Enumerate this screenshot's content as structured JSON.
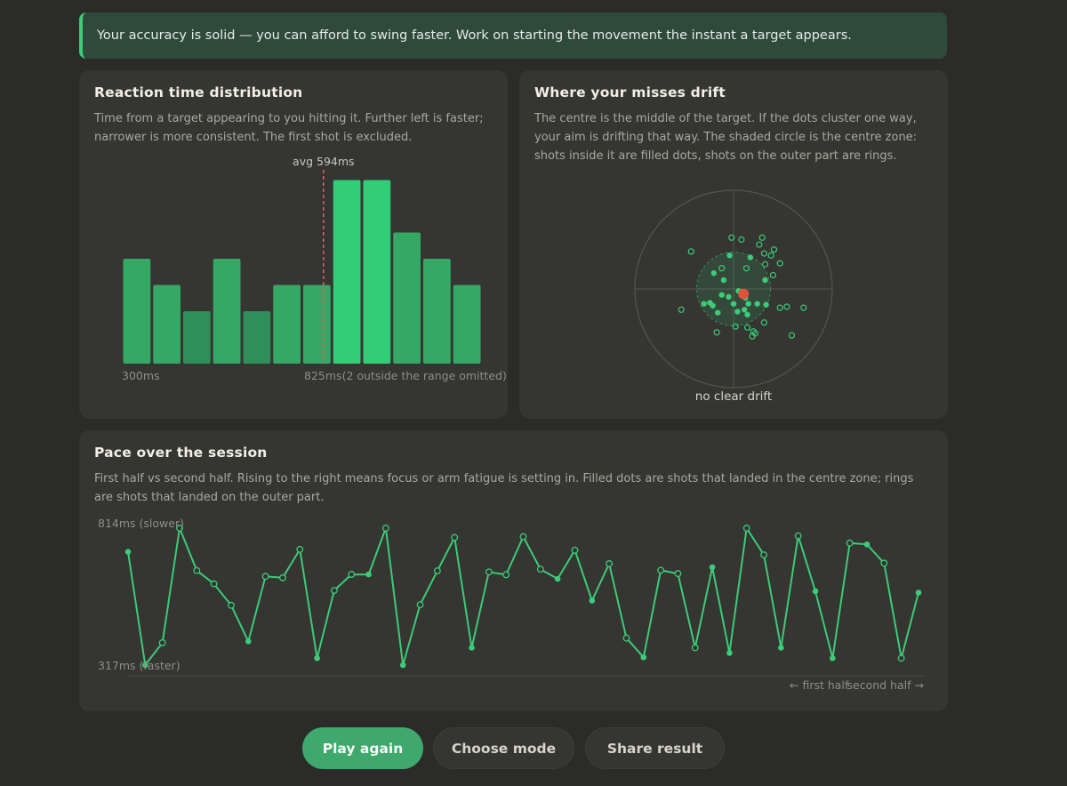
{
  "banner": {
    "text": "Your accuracy is solid — you can afford to swing faster. Work on starting the movement the instant a target appears."
  },
  "reaction_card": {
    "title": "Reaction time distribution",
    "description": "Time from a target appearing to you hitting it. Further left is faster; narrower is more consistent. The first shot is excluded."
  },
  "drift_card": {
    "title": "Where your misses drift",
    "description": "The centre is the middle of the target. If the dots cluster one way, your aim is drifting that way. The shaded circle is the centre zone: shots inside it are filled dots, shots on the outer part are rings."
  },
  "pace_card": {
    "title": "Pace over the session",
    "description": "First half vs second half. Rising to the right means focus or arm fatigue is setting in. Filled dots are shots that landed in the centre zone; rings are shots that landed on the outer part."
  },
  "buttons": {
    "play_again": "Play again",
    "choose_mode": "Choose mode",
    "share_result": "Share result"
  },
  "colors": {
    "accent": "#3fa86d",
    "bar_normal": "#35a866",
    "bar_dim": "#2f8f59",
    "bar_highlight": "#33cc77",
    "line": "#3ccb78",
    "avg_marker": "#e0615a",
    "drift_center": "#e0523e"
  },
  "chart_data": [
    {
      "type": "bar",
      "title": "Reaction time distribution",
      "x_min_label": "300ms",
      "x_max_label": "825ms",
      "omitted_note": "(2 outside the range omitted)",
      "avg_label": "avg 594ms",
      "avg_value": 594,
      "xlim": [
        300,
        825
      ],
      "values": [
        4,
        3,
        2,
        4,
        2,
        3,
        3,
        7,
        7,
        5,
        4,
        3
      ],
      "bar_shade": [
        "normal",
        "normal",
        "dim",
        "normal",
        "dim",
        "normal",
        "normal",
        "highlight",
        "highlight",
        "normal",
        "normal",
        "normal"
      ]
    },
    {
      "type": "scatter",
      "title": "Where your misses drift",
      "bottom_label": "no clear drift",
      "xlim": [
        -1,
        1
      ],
      "ylim": [
        -1,
        1
      ],
      "centre_zone_radius": 0.34,
      "mean_offset": [
        0.1,
        -0.05
      ],
      "points": [
        [
          -0.02,
          0.52,
          0
        ],
        [
          0.08,
          0.5,
          0
        ],
        [
          0.29,
          0.52,
          0
        ],
        [
          0.26,
          0.45,
          0
        ],
        [
          0.41,
          0.4,
          0
        ],
        [
          0.31,
          0.36,
          0
        ],
        [
          0.38,
          0.34,
          0
        ],
        [
          0.47,
          0.26,
          0
        ],
        [
          -0.43,
          0.38,
          0
        ],
        [
          0.32,
          0.25,
          0
        ],
        [
          0.13,
          0.21,
          0
        ],
        [
          0.4,
          0.14,
          0
        ],
        [
          -0.12,
          0.21,
          0
        ],
        [
          0.54,
          -0.18,
          0
        ],
        [
          0.47,
          -0.19,
          0
        ],
        [
          0.71,
          -0.19,
          0
        ],
        [
          -0.53,
          -0.21,
          0
        ],
        [
          0.02,
          -0.38,
          0
        ],
        [
          0.14,
          -0.39,
          0
        ],
        [
          0.2,
          -0.43,
          0
        ],
        [
          0.22,
          -0.45,
          0
        ],
        [
          0.31,
          -0.34,
          0
        ],
        [
          0.19,
          -0.48,
          0
        ],
        [
          -0.17,
          -0.44,
          0
        ],
        [
          0.59,
          -0.47,
          0
        ],
        [
          -0.04,
          0.34,
          1
        ],
        [
          0.17,
          0.32,
          1
        ],
        [
          -0.2,
          0.16,
          1
        ],
        [
          -0.1,
          0.09,
          1
        ],
        [
          0.32,
          0.09,
          1
        ],
        [
          -0.12,
          -0.06,
          1
        ],
        [
          0.05,
          -0.02,
          1
        ],
        [
          0.12,
          -0.09,
          1
        ],
        [
          -0.24,
          -0.14,
          1
        ],
        [
          -0.21,
          -0.17,
          1
        ],
        [
          0.0,
          -0.15,
          1
        ],
        [
          0.15,
          -0.15,
          1
        ],
        [
          0.24,
          -0.15,
          1
        ],
        [
          0.33,
          -0.16,
          1
        ],
        [
          -0.3,
          -0.15,
          1
        ],
        [
          0.11,
          -0.21,
          1
        ],
        [
          0.14,
          -0.26,
          1
        ],
        [
          -0.16,
          -0.24,
          1
        ],
        [
          0.04,
          -0.23,
          1
        ],
        [
          -0.05,
          -0.08,
          1
        ]
      ]
    },
    {
      "type": "line",
      "title": "Pace over the session",
      "y_max_label": "814ms (slower)",
      "y_min_label": "317ms (faster)",
      "x_left_label": "← first half",
      "x_right_label": "second half →",
      "ylim": [
        317,
        814
      ],
      "y": [
        728,
        317,
        398,
        814,
        660,
        612,
        534,
        403,
        639,
        634,
        737,
        342,
        588,
        646,
        646,
        814,
        317,
        536,
        659,
        780,
        380,
        655,
        645,
        783,
        665,
        630,
        734,
        551,
        685,
        415,
        345,
        661,
        649,
        380,
        672,
        361,
        814,
        717,
        380,
        786,
        585,
        342,
        760,
        755,
        687,
        342,
        580
      ],
      "in_zone": [
        1,
        1,
        0,
        0,
        0,
        0,
        0,
        1,
        0,
        0,
        0,
        1,
        0,
        0,
        1,
        0,
        1,
        0,
        0,
        0,
        1,
        0,
        0,
        0,
        0,
        1,
        0,
        1,
        0,
        0,
        1,
        0,
        0,
        0,
        1,
        1,
        0,
        0,
        1,
        0,
        1,
        1,
        0,
        1,
        0,
        0,
        1
      ]
    }
  ]
}
